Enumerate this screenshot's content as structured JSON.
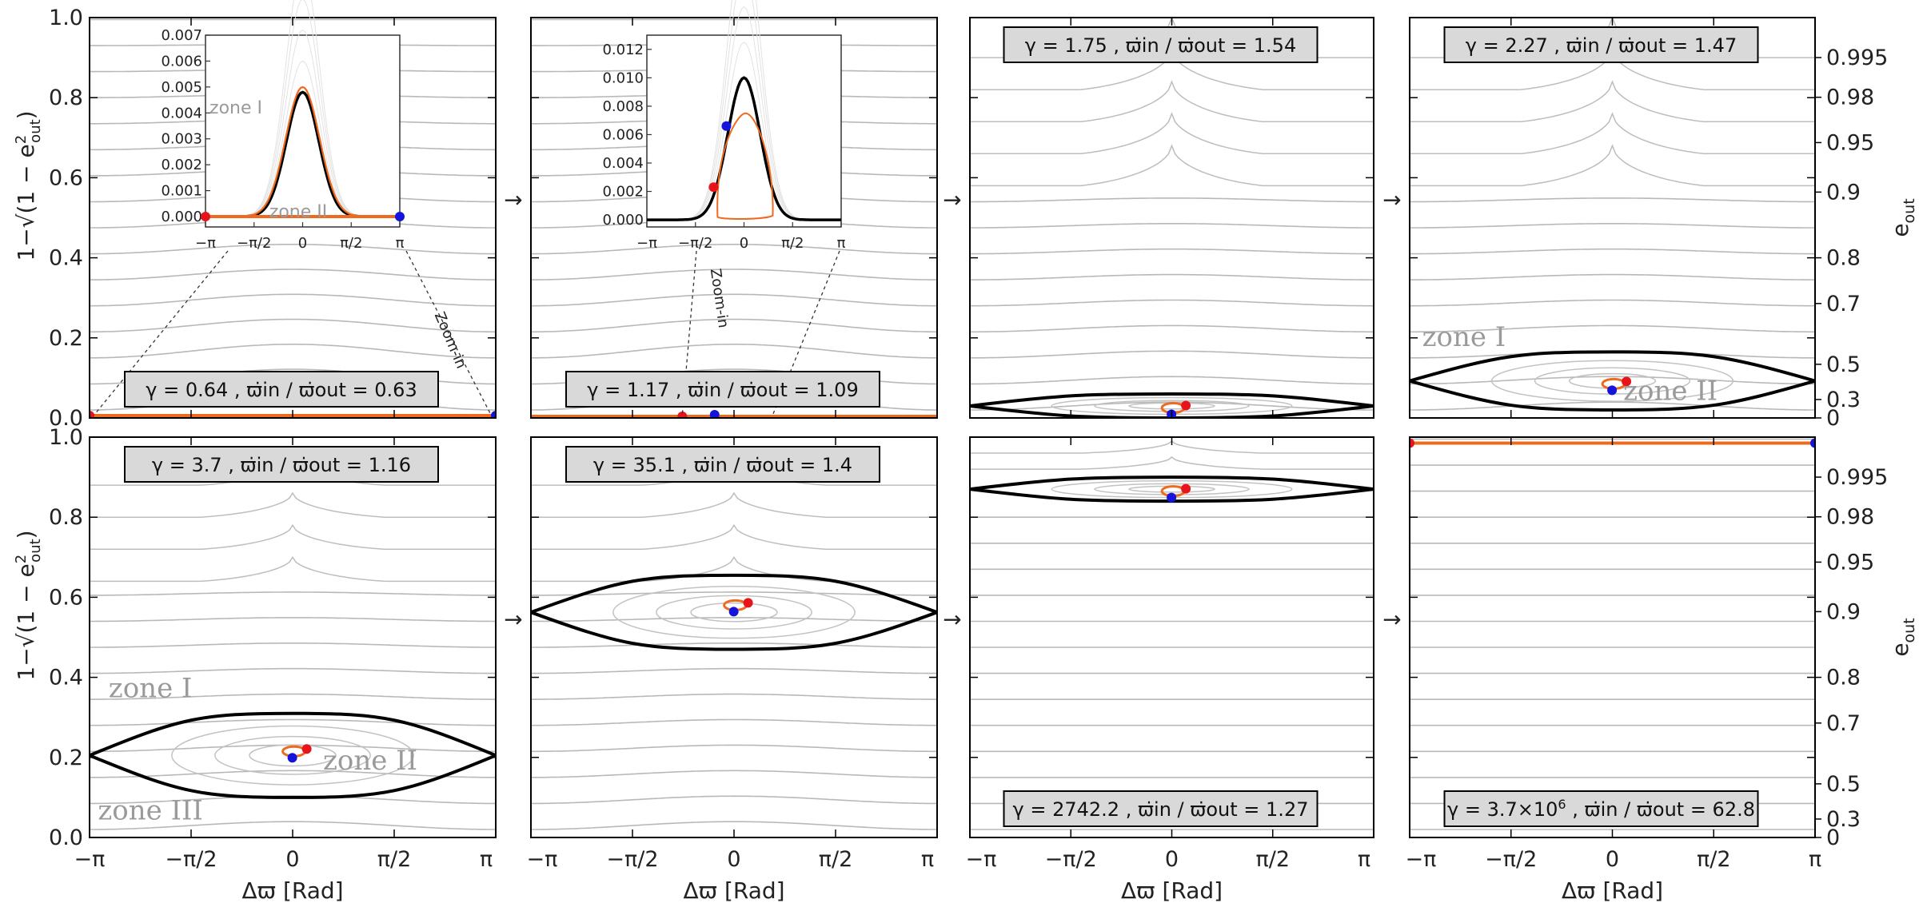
{
  "chart_data": {
    "type": "line",
    "description_grid": "2 rows x 4 columns of phase-space panels",
    "x_axis": {
      "label": "Δϖ [Rad]",
      "range": [
        -3.14159,
        3.14159
      ],
      "ticks": [
        {
          "value": -3.14159,
          "label": "−π"
        },
        {
          "value": -1.5708,
          "label": "−π/2"
        },
        {
          "value": 0,
          "label": "0"
        },
        {
          "value": 1.5708,
          "label": "π/2"
        },
        {
          "value": 3.14159,
          "label": "π"
        }
      ]
    },
    "y_axis_left": {
      "label_prefix": "1−",
      "label_expr": "1 − e",
      "label_sub": "out",
      "label_sup": "2",
      "range": [
        0,
        1
      ],
      "tick_labels": [
        "0.0",
        "0.2",
        "0.4",
        "0.6",
        "0.8",
        "1.0"
      ],
      "tick_values": [
        0,
        0.2,
        0.4,
        0.6,
        0.8,
        1.0
      ]
    },
    "y_axis_right": {
      "label": "e",
      "label_sub": "out",
      "ticks": [
        {
          "e": 0,
          "label": "0"
        },
        {
          "e": 0.3,
          "label": "0.3"
        },
        {
          "e": 0.5,
          "label": "0.5"
        },
        {
          "e": 0.7,
          "label": "0.7"
        },
        {
          "e": 0.8,
          "label": "0.8"
        },
        {
          "e": 0.9,
          "label": "0.9"
        },
        {
          "e": 0.95,
          "label": "0.95"
        },
        {
          "e": 0.98,
          "label": "0.98"
        },
        {
          "e": 0.995,
          "label": "0.995"
        }
      ]
    },
    "arrow_symbol": "→",
    "panels": [
      {
        "row": 0,
        "col": 0,
        "gamma": "0.64",
        "ratio": "0.63",
        "box_pos": "bottom",
        "separatrix": null,
        "center_y": null,
        "orbit_level": 0.006,
        "inset": {
          "type": "zoom-I",
          "ylim": [
            -0.0004,
            0.007
          ],
          "yticks": [
            "0.000",
            "0.001",
            "0.002",
            "0.003",
            "0.004",
            "0.005",
            "0.006",
            "0.007"
          ],
          "separatrix_peak": 0.0048,
          "orbit_peak": 0.005,
          "zones": [
            "zone I",
            "zone II"
          ]
        },
        "zoom_label": "Zoom-in"
      },
      {
        "row": 0,
        "col": 1,
        "gamma": "1.17",
        "ratio": "1.09",
        "box_pos": "bottom",
        "separatrix": null,
        "center_y": null,
        "orbit_level": 0.004,
        "inset": {
          "type": "zoom-II",
          "ylim": [
            -0.0005,
            0.013
          ],
          "yticks": [
            "0.000",
            "0.002",
            "0.004",
            "0.006",
            "0.008",
            "0.010",
            "0.012"
          ],
          "separatrix_peak": 0.01,
          "orbit_peak": 0.0075
        },
        "zoom_label": "Zoom-in"
      },
      {
        "row": 0,
        "col": 2,
        "gamma": "1.75",
        "ratio": "1.54",
        "box_pos": "top",
        "separatrix": {
          "min": 0,
          "max": 0.06
        },
        "center_y": 0.025
      },
      {
        "row": 0,
        "col": 3,
        "gamma": "2.27",
        "ratio": "1.47",
        "box_pos": "top",
        "separatrix": {
          "min": 0.02,
          "max": 0.165
        },
        "center_y": 0.085,
        "zones": [
          {
            "label": "zone I",
            "x": -2.3,
            "y": 0.18
          },
          {
            "label": "zone II",
            "x": 0.9,
            "y": 0.045
          }
        ]
      },
      {
        "row": 1,
        "col": 0,
        "gamma": "3.7",
        "ratio": "1.16",
        "box_pos": "top",
        "separatrix": {
          "min": 0.1,
          "max": 0.31
        },
        "center_y": 0.215,
        "zones": [
          {
            "label": "zone I",
            "x": -2.2,
            "y": 0.35
          },
          {
            "label": "zone II",
            "x": 1.2,
            "y": 0.17
          },
          {
            "label": "zone III",
            "x": -2.2,
            "y": 0.045
          }
        ]
      },
      {
        "row": 1,
        "col": 1,
        "gamma": "35.1",
        "ratio": "1.4",
        "box_pos": "top",
        "separatrix": {
          "min": 0.47,
          "max": 0.655
        },
        "center_y": 0.58
      },
      {
        "row": 1,
        "col": 2,
        "gamma": "2742.2",
        "ratio": "1.27",
        "box_pos": "bottom",
        "separatrix": {
          "min": 0.84,
          "max": 0.9
        },
        "center_y": 0.865
      },
      {
        "row": 1,
        "col": 3,
        "gamma": "3.7×10",
        "gamma_sup": "6",
        "ratio": "62.8",
        "box_pos": "bottom",
        "separatrix": null,
        "center_y": null,
        "orbit_level": 0.985
      }
    ],
    "box_labels": {
      "gamma_symbol": "γ =",
      "ratio_text": "ϖ̇in / ϖ̇out ="
    }
  }
}
